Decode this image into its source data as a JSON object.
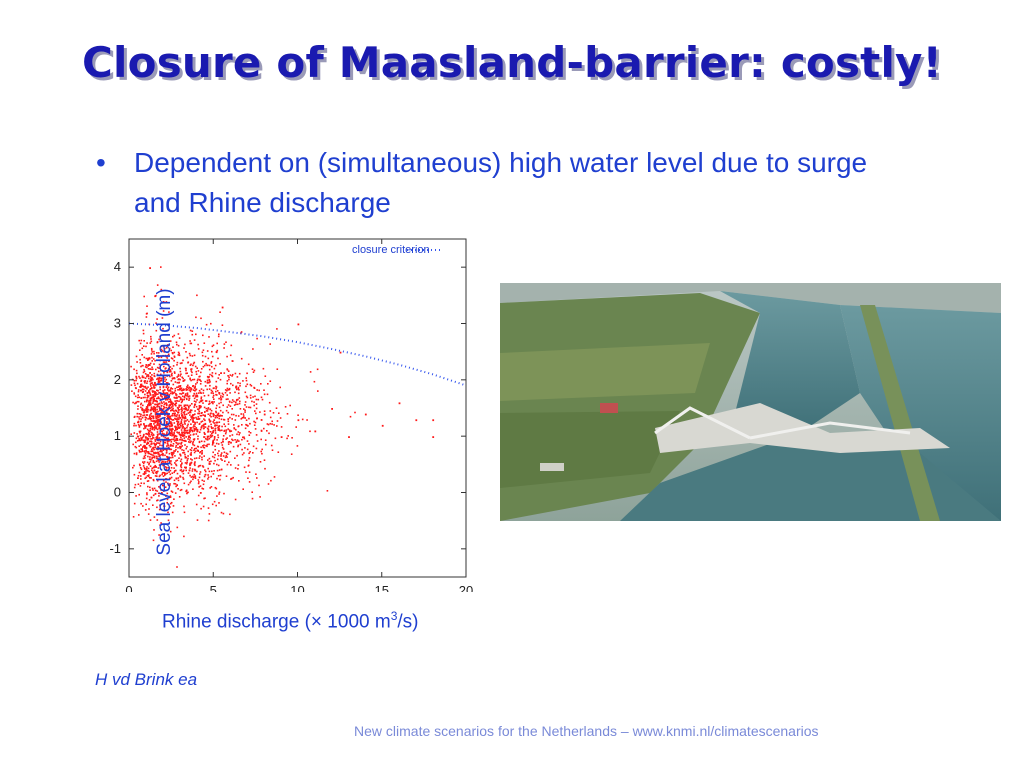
{
  "slide": {
    "title": "Closure of Maasland-barrier: costly!",
    "bullet_marker": "•",
    "bullet": "Dependent on (simultaneous) high water level due to surge and Rhine discharge",
    "credit": "H vd Brink ea",
    "footer": "New climate scenarios for the Netherlands – www.knmi.nl/climatescenarios"
  },
  "chart_data": {
    "type": "scatter",
    "ylabel": "Sea level at Hoek v Holland (m)",
    "xlabel_prefix": "Rhine discharge (",
    "xlabel_times": "×",
    "xlabel_mid": " 1000 m",
    "xlabel_sup": "3",
    "xlabel_suffix": "/s)",
    "xlim": [
      0,
      20
    ],
    "ylim": [
      -1.5,
      4.5
    ],
    "x_ticks": [
      "0",
      "5",
      "10",
      "15",
      "20"
    ],
    "y_ticks": [
      "-1",
      "0",
      "1",
      "2",
      "3",
      "4"
    ],
    "grid": false,
    "legend_position": "top-right",
    "point_color": "#ff1a1a",
    "criterion_color": "#3355ee",
    "series": [
      {
        "name": "closure criterion",
        "type": "line",
        "style": "dotted",
        "x": [
          0,
          2,
          4,
          6,
          8,
          10,
          12,
          14,
          16,
          18,
          20
        ],
        "y": [
          3.0,
          2.97,
          2.92,
          2.85,
          2.77,
          2.67,
          2.55,
          2.42,
          2.27,
          2.1,
          1.9
        ]
      },
      {
        "type": "scatter",
        "description_points": "dense cloud of sea level samples",
        "samples": [
          [
            1,
            1.2
          ],
          [
            2,
            1.5
          ],
          [
            3,
            0.8
          ],
          [
            4,
            1.1
          ],
          [
            5,
            1.3
          ],
          [
            6,
            0.9
          ],
          [
            7,
            1.2
          ],
          [
            8,
            1.4
          ],
          [
            9,
            1.0
          ],
          [
            10,
            1.3
          ],
          [
            11,
            1.1
          ],
          [
            12,
            1.5
          ],
          [
            13,
            1.0
          ],
          [
            14,
            1.4
          ],
          [
            15,
            1.2
          ],
          [
            16,
            1.6
          ],
          [
            17,
            1.3
          ],
          [
            18,
            1.3
          ],
          [
            1.2,
            4.0
          ],
          [
            1.5,
            3.5
          ],
          [
            2.0,
            3.4
          ],
          [
            5.5,
            3.3
          ],
          [
            10,
            3.0
          ],
          [
            12.5,
            2.5
          ],
          [
            18,
            1.0
          ]
        ]
      }
    ]
  },
  "photo": {
    "icon": "aerial-photo-icon",
    "colors": {
      "water": "#4d7f86",
      "land": "#6f8b4f",
      "sky_haze": "#a7b6b3"
    }
  }
}
